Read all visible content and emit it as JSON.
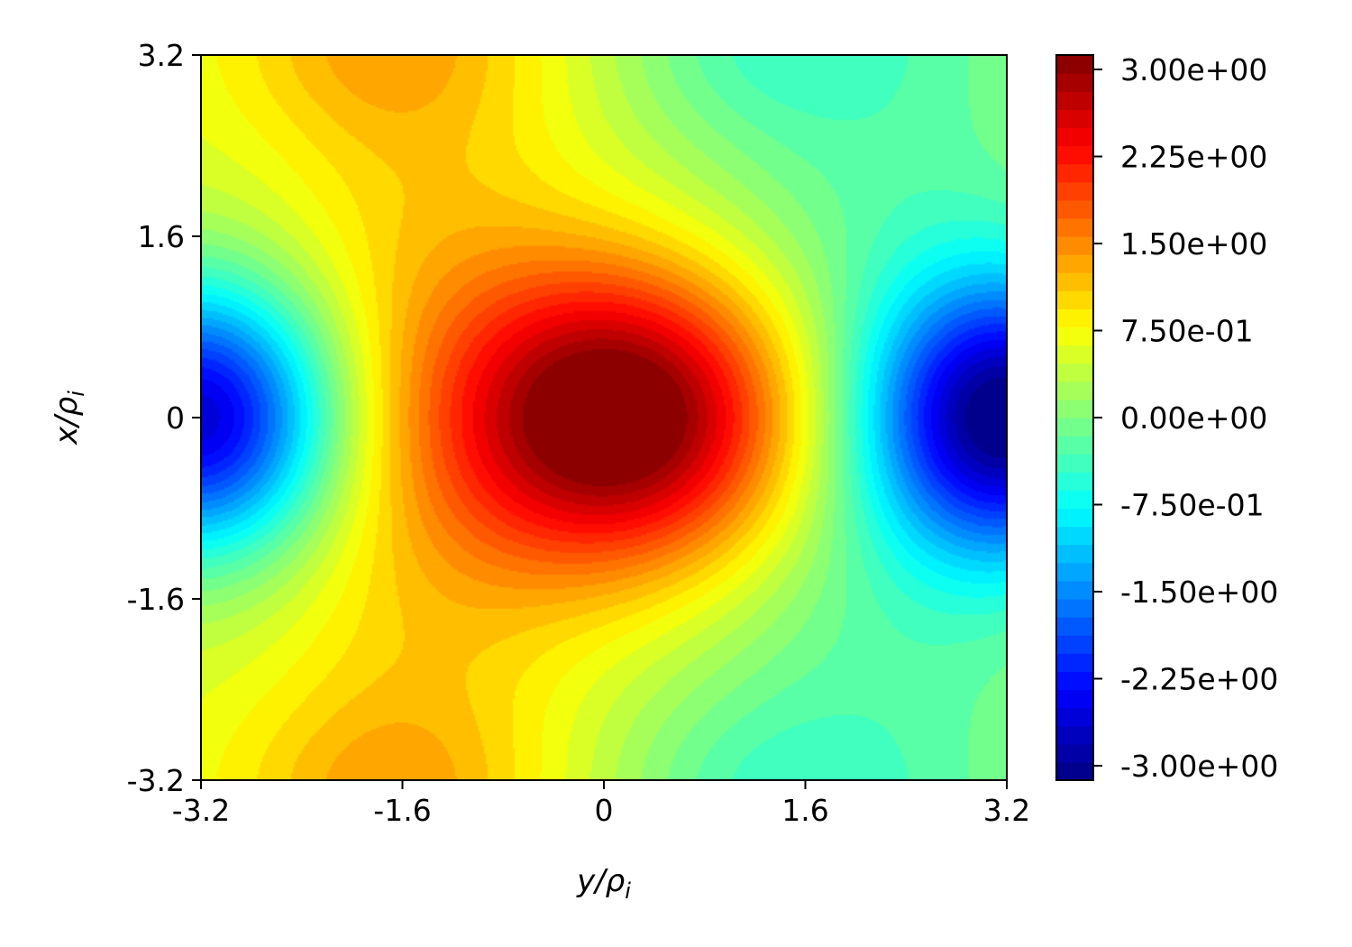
{
  "chart_data": {
    "type": "heatmap",
    "title": "",
    "xlabel": "y/ρ",
    "xlabel_sub": "i",
    "ylabel": "x/ρ",
    "ylabel_sub": "i",
    "xlim": [
      -3.2,
      3.2
    ],
    "ylim": [
      -3.2,
      3.2
    ],
    "x_ticks": [
      -3.2,
      -1.6,
      0,
      1.6,
      3.2
    ],
    "x_tick_labels": [
      "-3.2",
      "-1.6",
      "0",
      "1.6",
      "3.2"
    ],
    "y_ticks": [
      -3.2,
      -1.6,
      0,
      1.6,
      3.2
    ],
    "y_tick_labels": [
      "-3.2",
      "-1.6",
      "0",
      "1.6",
      "3.2"
    ],
    "colormap": "jet",
    "levels": 40,
    "colorbar": {
      "range": [
        -3.0,
        3.0
      ],
      "ticks": [
        3.0,
        2.25,
        1.5,
        0.75,
        0.0,
        -0.75,
        -1.5,
        -2.25,
        -3.0
      ],
      "tick_labels": [
        "3.00e+00",
        "2.25e+00",
        "1.50e+00",
        "7.50e-01",
        "0.00e+00",
        "-7.50e-01",
        "-1.50e+00",
        "-2.25e+00",
        "-3.00e+00"
      ]
    },
    "features": [
      {
        "kind": "maximum",
        "y": 0.3,
        "x": 0.0,
        "value": 3.0
      },
      {
        "kind": "minimum",
        "y": -3.1,
        "x": 0.0,
        "value": -3.0
      },
      {
        "kind": "minimum",
        "y": 3.15,
        "x": 0.0,
        "value": -3.0
      },
      {
        "kind": "local-max",
        "y": -1.8,
        "x": 3.2,
        "value": 0.95
      },
      {
        "kind": "local-max",
        "y": -1.9,
        "x": -3.1,
        "value": 0.9
      },
      {
        "kind": "local-min",
        "y": 1.2,
        "x": -3.0,
        "value": -0.9
      },
      {
        "kind": "local-min",
        "y": 1.2,
        "x": 3.1,
        "value": -0.85
      }
    ]
  }
}
